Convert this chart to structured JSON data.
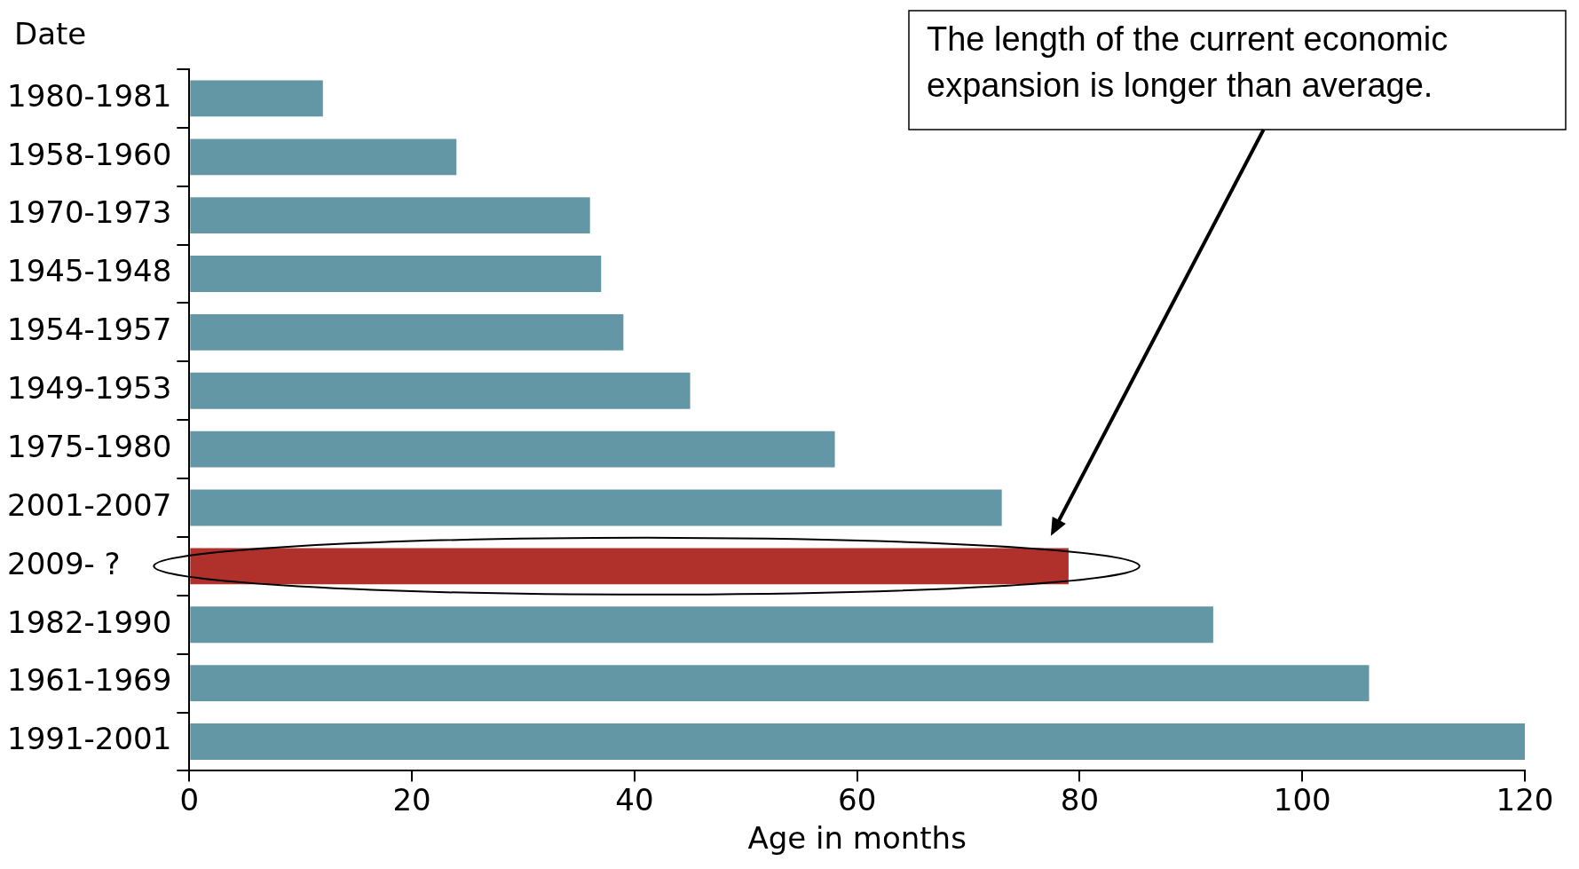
{
  "chart_data": {
    "type": "bar",
    "orientation": "horizontal",
    "ylabel": "Date",
    "xlabel": "Age in months",
    "categories": [
      "1980-1981",
      "1958-1960",
      "1970-1973",
      "1945-1948",
      "1954-1957",
      "1949-1953",
      "1975-1980",
      "2001-2007",
      "2009- ?",
      "1982-1990",
      "1961-1969",
      "1991-2001"
    ],
    "values": [
      12,
      24,
      36,
      37,
      39,
      45,
      58,
      73,
      79,
      92,
      106,
      120
    ],
    "colors": [
      "#6497a5",
      "#6497a5",
      "#6497a5",
      "#6497a5",
      "#6497a5",
      "#6497a5",
      "#6497a5",
      "#6497a5",
      "#b0302b",
      "#6497a5",
      "#6497a5",
      "#6497a5"
    ],
    "xlim": [
      0,
      120
    ],
    "xticks": [
      0,
      20,
      40,
      60,
      80,
      100,
      120
    ],
    "grid": false,
    "legend": false,
    "annotations": [
      "The length of the current economic expansion is longer than average."
    ]
  }
}
